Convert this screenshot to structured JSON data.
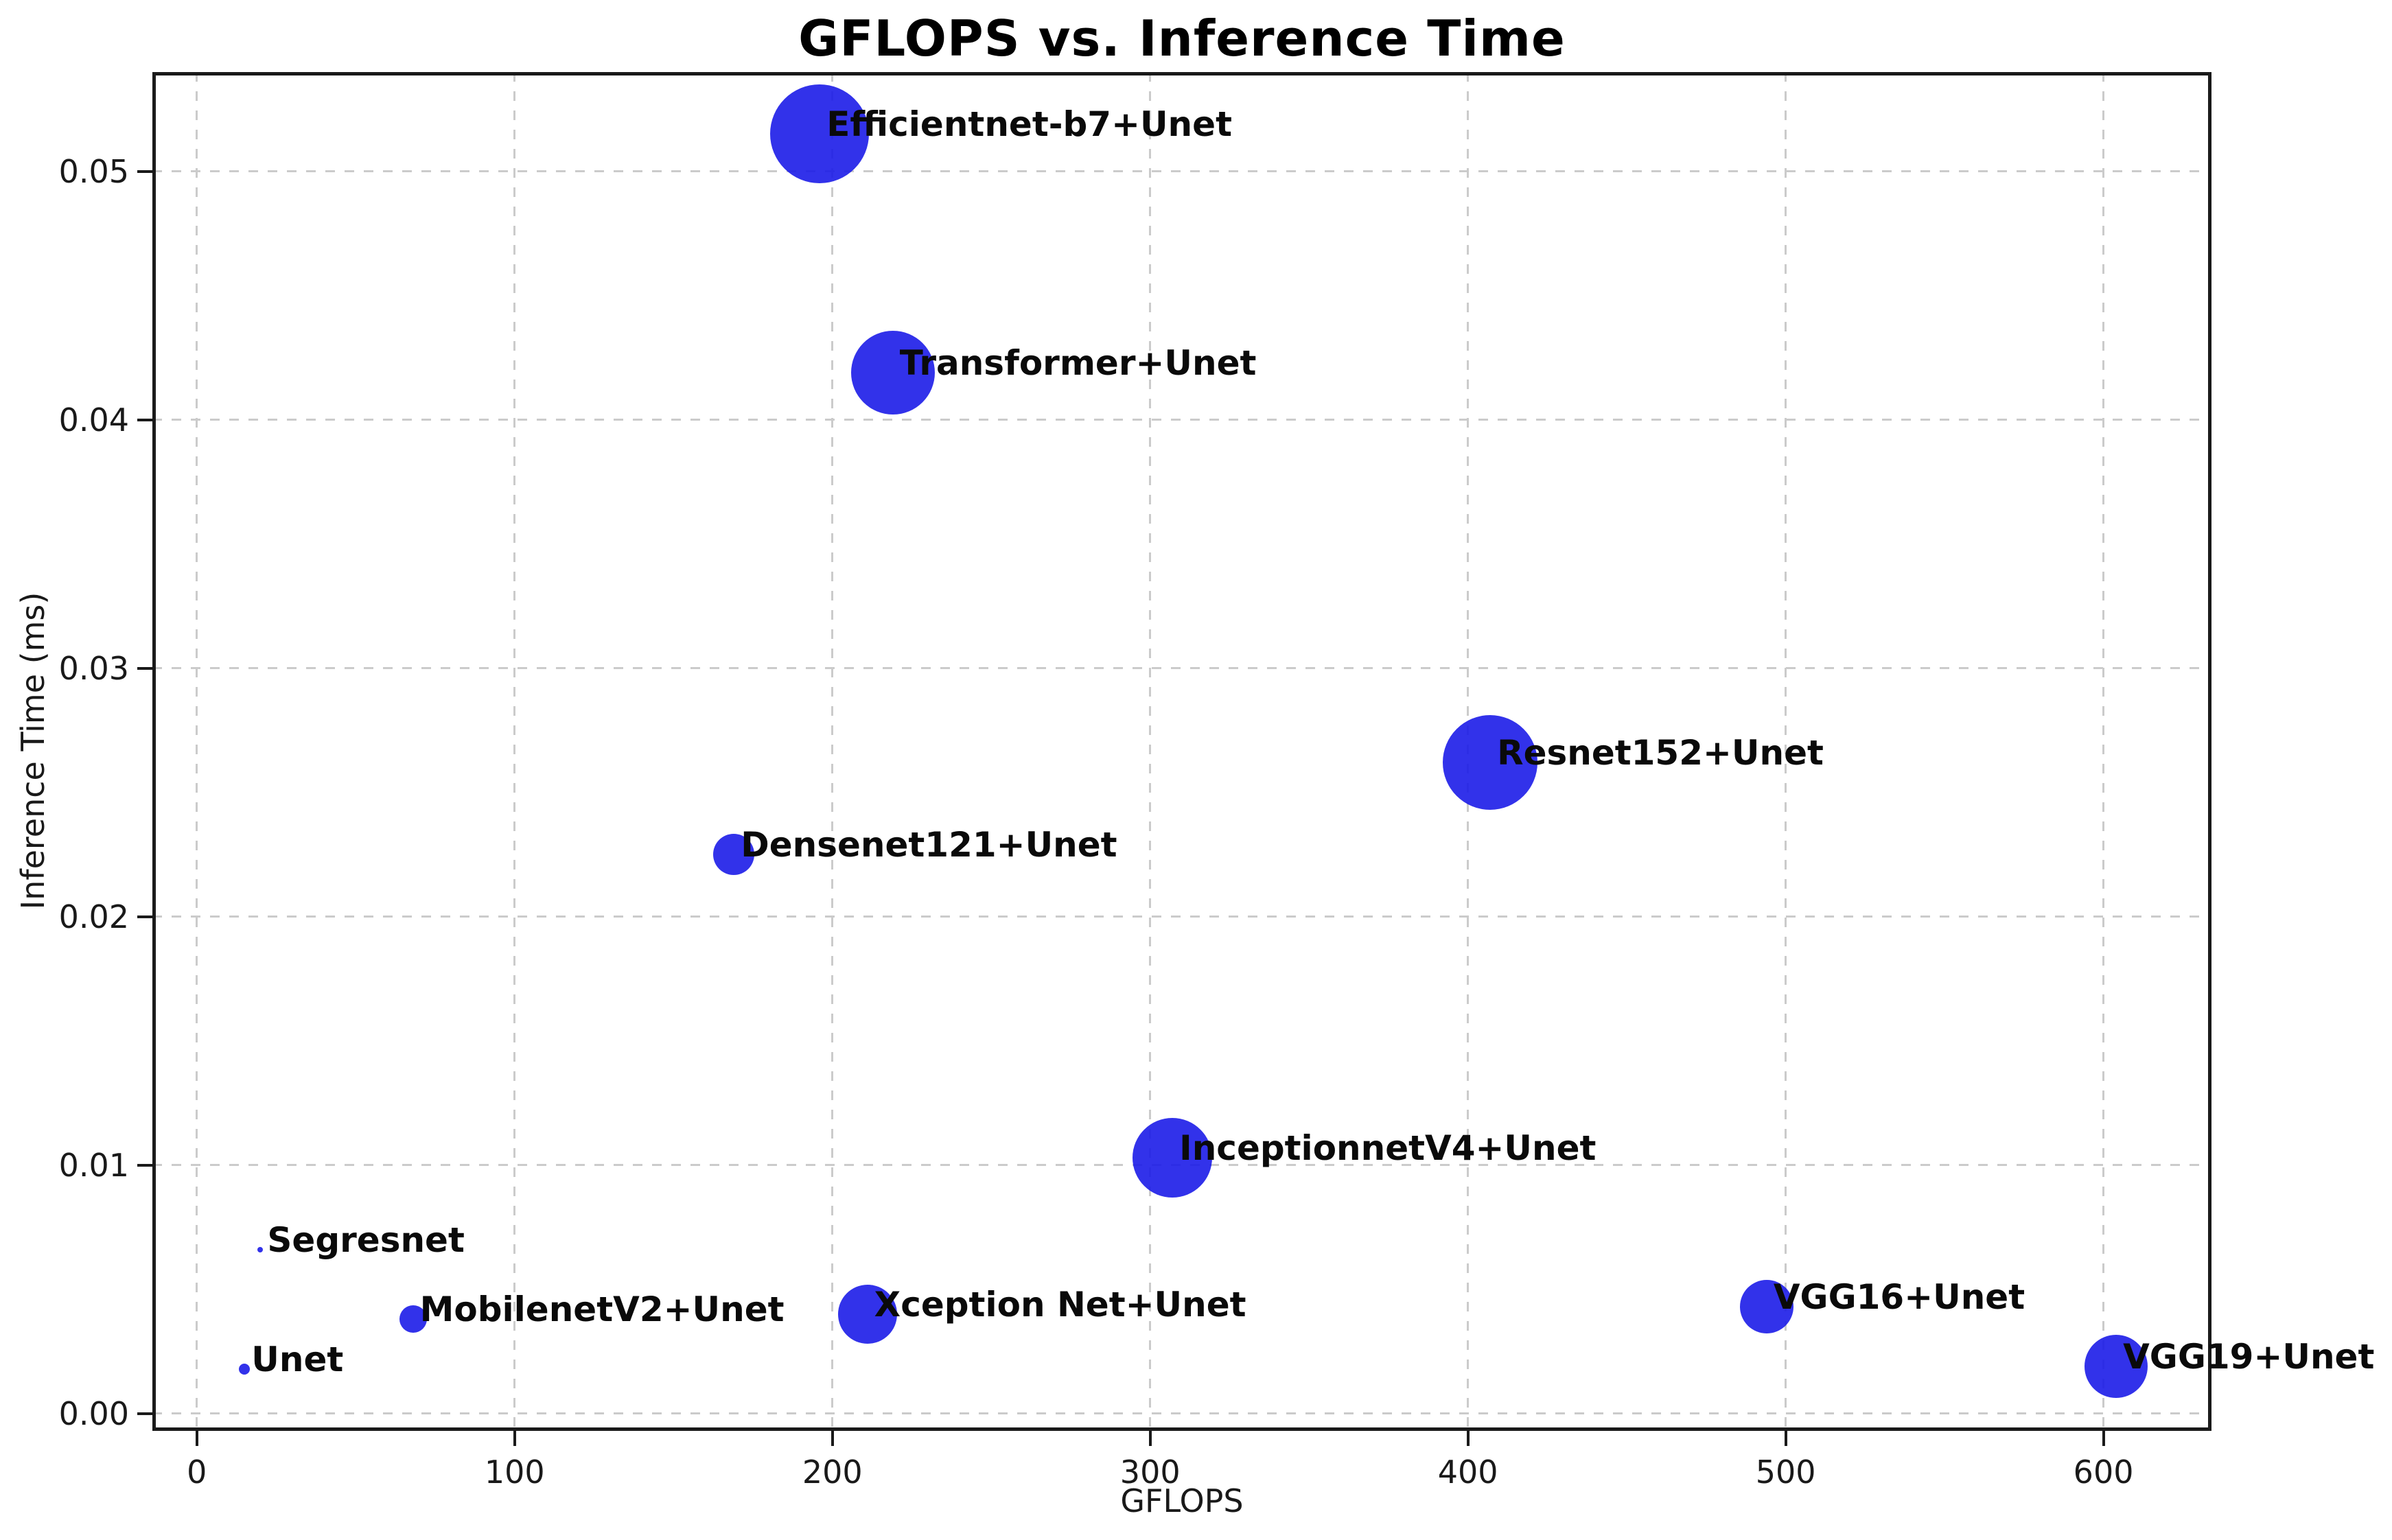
{
  "chart_data": {
    "type": "scatter",
    "title": "GFLOPS vs. Inference Time",
    "xlabel": "GFLOPS",
    "ylabel": "Inference Time (ms)",
    "xlim": [
      -14,
      634
    ],
    "ylim": [
      -0.0007,
      0.054
    ],
    "xticks": [
      0,
      100,
      200,
      300,
      400,
      500,
      600
    ],
    "xtick_labels": [
      "0",
      "100",
      "200",
      "300",
      "400",
      "500",
      "600"
    ],
    "yticks": [
      0,
      0.01,
      0.02,
      0.03,
      0.04,
      0.05
    ],
    "ytick_labels": [
      "0.00",
      "0.01",
      "0.02",
      "0.03",
      "0.04",
      "0.05"
    ],
    "grid": true,
    "grid_style": "dashed",
    "marker_color": "#1C1CE8",
    "marker_alpha": 0.9,
    "label_color": "#0a0a0a",
    "points": [
      {
        "label": "Unet",
        "gflops": 15,
        "inference_time_ms": 0.0018,
        "size": 8
      },
      {
        "label": "Segresnet",
        "gflops": 20,
        "inference_time_ms": 0.0066,
        "size": 4
      },
      {
        "label": "MobilenetV2+Unet",
        "gflops": 68,
        "inference_time_ms": 0.0038,
        "size": 20
      },
      {
        "label": "Densenet121+Unet",
        "gflops": 169,
        "inference_time_ms": 0.0225,
        "size": 30
      },
      {
        "label": "Efficientnet-b7+Unet",
        "gflops": 196,
        "inference_time_ms": 0.0515,
        "size": 72
      },
      {
        "label": "Xception Net+Unet",
        "gflops": 211,
        "inference_time_ms": 0.004,
        "size": 43
      },
      {
        "label": "Transformer+Unet",
        "gflops": 219,
        "inference_time_ms": 0.0419,
        "size": 61
      },
      {
        "label": "InceptionnetV4+Unet",
        "gflops": 307,
        "inference_time_ms": 0.0103,
        "size": 58
      },
      {
        "label": "Resnet152+Unet",
        "gflops": 407,
        "inference_time_ms": 0.0262,
        "size": 69
      },
      {
        "label": "VGG16+Unet",
        "gflops": 494,
        "inference_time_ms": 0.0043,
        "size": 39
      },
      {
        "label": "VGG19+Unet",
        "gflops": 604,
        "inference_time_ms": 0.0019,
        "size": 46
      }
    ],
    "annotation_offset": {
      "dx": 10,
      "dy": -14
    }
  }
}
